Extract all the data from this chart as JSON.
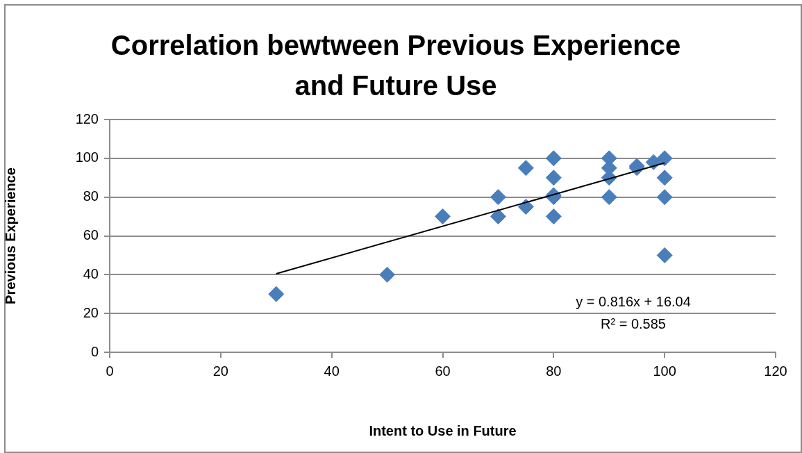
{
  "chart_data": {
    "type": "scatter",
    "title": "Correlation bewtween Previous Experience and Future Use",
    "xlabel": "Intent to Use in Future",
    "ylabel": "Previous Experience",
    "series": [
      {
        "marker": "diamond",
        "color": "#4a7ebb",
        "x": [
          30,
          50,
          60,
          70,
          70,
          75,
          75,
          80,
          80,
          80,
          80,
          80,
          90,
          90,
          90,
          90,
          95,
          95,
          98,
          100,
          100,
          100,
          100
        ],
        "values": [
          30,
          40,
          70,
          80,
          70,
          95,
          75,
          100,
          90,
          81,
          80,
          70,
          100,
          95,
          90,
          80,
          96,
          95,
          98,
          100,
          90,
          80,
          50
        ]
      },
      {
        "type": "line",
        "marker": "none",
        "color": "#000000",
        "x": [
          30,
          100
        ],
        "values": [
          40.5,
          97.6
        ]
      }
    ],
    "xlim": [
      0,
      120
    ],
    "xticks": [
      0,
      20,
      40,
      60,
      80,
      100,
      120
    ],
    "ylim": [
      0,
      120
    ],
    "yticks": [
      0,
      20,
      40,
      60,
      80,
      100,
      120
    ],
    "grid": "y",
    "legend": false,
    "annotations": [
      "y = 0.816x + 16.04",
      "R² = 0.585"
    ]
  }
}
